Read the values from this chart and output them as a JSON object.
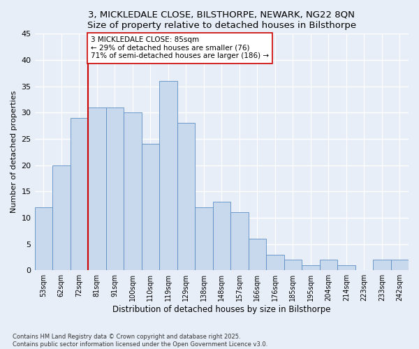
{
  "title_line1": "3, MICKLEDALE CLOSE, BILSTHORPE, NEWARK, NG22 8QN",
  "title_line2": "Size of property relative to detached houses in Bilsthorpe",
  "xlabel": "Distribution of detached houses by size in Bilsthorpe",
  "ylabel": "Number of detached properties",
  "categories": [
    "53sqm",
    "62sqm",
    "72sqm",
    "81sqm",
    "91sqm",
    "100sqm",
    "110sqm",
    "119sqm",
    "129sqm",
    "138sqm",
    "148sqm",
    "157sqm",
    "166sqm",
    "176sqm",
    "185sqm",
    "195sqm",
    "204sqm",
    "214sqm",
    "223sqm",
    "233sqm",
    "242sqm"
  ],
  "values": [
    12,
    20,
    29,
    31,
    31,
    30,
    24,
    36,
    28,
    12,
    13,
    11,
    6,
    3,
    2,
    1,
    2,
    1,
    0,
    2,
    2
  ],
  "bar_color": "#c9d9ed",
  "bar_edge_color": "#5b8ec4",
  "background_color": "#e8eef7",
  "grid_color": "#ffffff",
  "vline_color": "#cc0000",
  "vline_x_idx": 3,
  "annotation_text": "3 MICKLEDALE CLOSE: 85sqm\n← 29% of detached houses are smaller (76)\n71% of semi-detached houses are larger (186) →",
  "annotation_box_color": "#ffffff",
  "annotation_box_edge": "#cc0000",
  "footnote_line1": "Contains HM Land Registry data © Crown copyright and database right 2025.",
  "footnote_line2": "Contains public sector information licensed under the Open Government Licence v3.0.",
  "ylim": [
    0,
    45
  ],
  "yticks": [
    0,
    5,
    10,
    15,
    20,
    25,
    30,
    35,
    40,
    45
  ]
}
